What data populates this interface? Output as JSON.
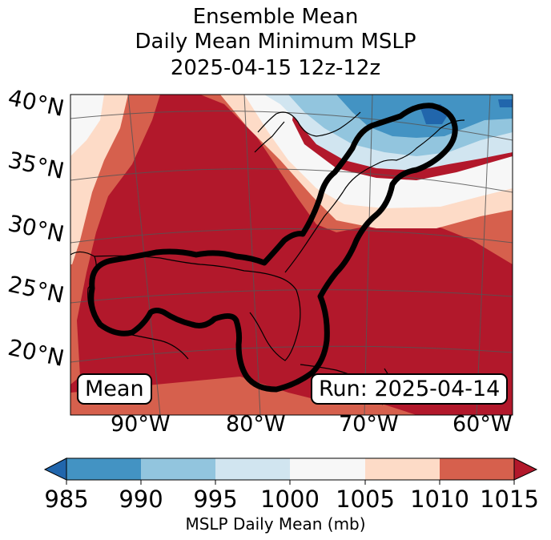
{
  "title": {
    "line1": "Ensemble Mean",
    "line2": "Daily Mean Minimum MSLP",
    "line3": "2025-04-15 12z-12z"
  },
  "map": {
    "lat_labels": [
      "40°N",
      "35°N",
      "30°N",
      "25°N",
      "20°N"
    ],
    "lon_labels": [
      "90°W",
      "80°W",
      "70°W",
      "60°W"
    ],
    "box_left": "Mean",
    "box_right": "Run: 2025-04-14",
    "palette": {
      "lt985": "#2166ac",
      "b985_990": "#4393c3",
      "b990_995": "#92c5de",
      "b995_1000": "#d1e5f0",
      "b1000_1005": "#f7f7f7",
      "b1005_1010": "#fddbc7",
      "b1010_1015": "#d6604d",
      "gt1015": "#b2182b"
    }
  },
  "colorbar": {
    "ticks": [
      "985",
      "990",
      "995",
      "1000",
      "1005",
      "1010",
      "1015"
    ],
    "label": "MSLP Daily Mean (mb)",
    "colors": [
      "#2166ac",
      "#4393c3",
      "#92c5de",
      "#d1e5f0",
      "#f7f7f7",
      "#fddbc7",
      "#d6604d",
      "#b2182b"
    ]
  }
}
